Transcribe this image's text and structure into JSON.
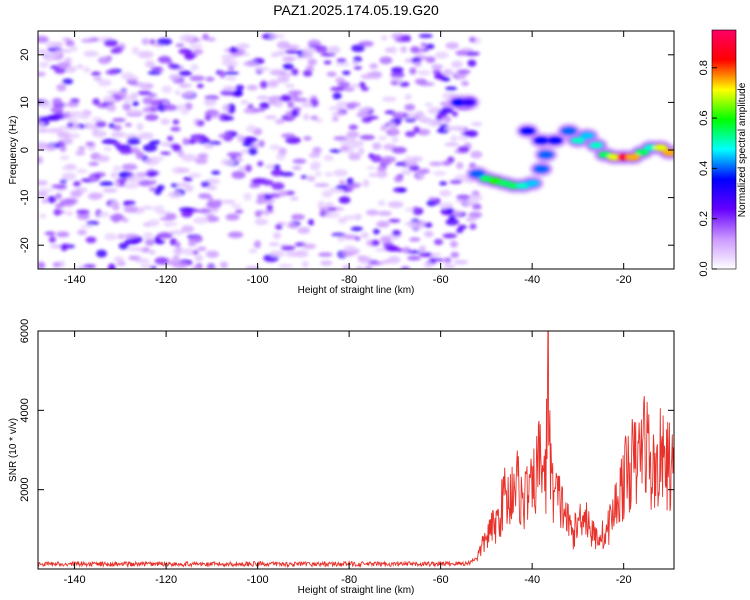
{
  "title": "PAZ1.2025.174.05.19.G20",
  "chart_data": [
    {
      "type": "heatmap",
      "xlabel": "Height of straight line (km)",
      "ylabel": "Frequency (Hz)",
      "xlim": [
        -148,
        -9
      ],
      "ylim": [
        -25,
        25
      ],
      "xticks": [
        -140,
        -120,
        -100,
        -80,
        -60,
        -40,
        -20
      ],
      "yticks": [
        -20,
        -10,
        0,
        10,
        20
      ],
      "colorbar": {
        "label": "Normalized spectral amplitude",
        "range": [
          0,
          0.95
        ],
        "ticks": [
          0.0,
          0.2,
          0.4,
          0.6,
          0.8
        ],
        "tick_labels": [
          "0.0",
          "0.2",
          "0.4",
          "0.6",
          "0.8"
        ],
        "colormap": [
          "#ffffff",
          "#cc99ff",
          "#6600ff",
          "#0000ff",
          "#00ffff",
          "#00ff00",
          "#ffff00",
          "#ff0000",
          "#ff0066"
        ]
      },
      "noise_region": {
        "x": [
          -148,
          -52
        ],
        "y": [
          -25,
          24
        ],
        "amplitude": [
          0.05,
          0.3
        ]
      },
      "signal_track": [
        {
          "x": -56,
          "y": 10,
          "a": 0.35
        },
        {
          "x": -54,
          "y": 10,
          "a": 0.3
        },
        {
          "x": -52,
          "y": -5,
          "a": 0.4
        },
        {
          "x": -50,
          "y": -6,
          "a": 0.55
        },
        {
          "x": -48,
          "y": -6.5,
          "a": 0.6
        },
        {
          "x": -46,
          "y": -7,
          "a": 0.55
        },
        {
          "x": -44,
          "y": -7.5,
          "a": 0.55
        },
        {
          "x": -42,
          "y": -7.5,
          "a": 0.5
        },
        {
          "x": -40,
          "y": -7,
          "a": 0.45
        },
        {
          "x": -38,
          "y": -4,
          "a": 0.4
        },
        {
          "x": -37,
          "y": -1,
          "a": 0.4
        },
        {
          "x": -38,
          "y": 2,
          "a": 0.35
        },
        {
          "x": -41,
          "y": 4,
          "a": 0.35
        },
        {
          "x": -35,
          "y": 2,
          "a": 0.35
        },
        {
          "x": -32,
          "y": 4,
          "a": 0.4
        },
        {
          "x": -30,
          "y": 2,
          "a": 0.5
        },
        {
          "x": -28,
          "y": 3,
          "a": 0.45
        },
        {
          "x": -26,
          "y": 1,
          "a": 0.5
        },
        {
          "x": -24,
          "y": -1,
          "a": 0.55
        },
        {
          "x": -22,
          "y": -1.5,
          "a": 0.7
        },
        {
          "x": -20,
          "y": -1.5,
          "a": 0.9
        },
        {
          "x": -18,
          "y": -1.5,
          "a": 0.75
        },
        {
          "x": -16,
          "y": -0.5,
          "a": 0.55
        },
        {
          "x": -14,
          "y": 0.5,
          "a": 0.5
        },
        {
          "x": -12,
          "y": 0.5,
          "a": 0.7
        },
        {
          "x": -10,
          "y": -0.5,
          "a": 0.75
        }
      ]
    },
    {
      "type": "line",
      "xlabel": "Height of straight line (km)",
      "ylabel": "SNR (10 * v/v)",
      "xlim": [
        -148,
        -9
      ],
      "ylim": [
        0,
        6000
      ],
      "xticks": [
        -140,
        -120,
        -100,
        -80,
        -60,
        -40,
        -20
      ],
      "yticks": [
        2000,
        4000,
        6000
      ],
      "color": "#e8312a",
      "series": [
        {
          "x": [
            -148,
            -140,
            -130,
            -120,
            -110,
            -100,
            -90,
            -80,
            -70,
            -60,
            -54,
            -52,
            -51,
            -50,
            -49,
            -48,
            -47,
            -46,
            -45,
            -44,
            -43,
            -42,
            -41,
            -40,
            -39,
            -38,
            -37,
            -36.5,
            -36,
            -35,
            -34,
            -33,
            -32,
            -31,
            -30,
            -29,
            -28,
            -27,
            -26,
            -25,
            -24,
            -23,
            -22,
            -21,
            -20,
            -19,
            -18,
            -17,
            -16,
            -15,
            -14,
            -13,
            -12,
            -11,
            -10,
            -9
          ],
          "y": [
            120,
            130,
            120,
            130,
            120,
            130,
            120,
            130,
            120,
            130,
            140,
            300,
            550,
            800,
            1000,
            1100,
            1400,
            1900,
            1700,
            2300,
            2100,
            1600,
            2000,
            1900,
            2500,
            2900,
            2100,
            6000,
            2300,
            1900,
            1700,
            1500,
            1100,
            900,
            1100,
            1500,
            1300,
            900,
            800,
            900,
            800,
            1200,
            1500,
            1900,
            2200,
            2500,
            2700,
            2600,
            3200,
            3300,
            2400,
            2500,
            2800,
            2700,
            2600,
            2400
          ]
        }
      ]
    }
  ]
}
